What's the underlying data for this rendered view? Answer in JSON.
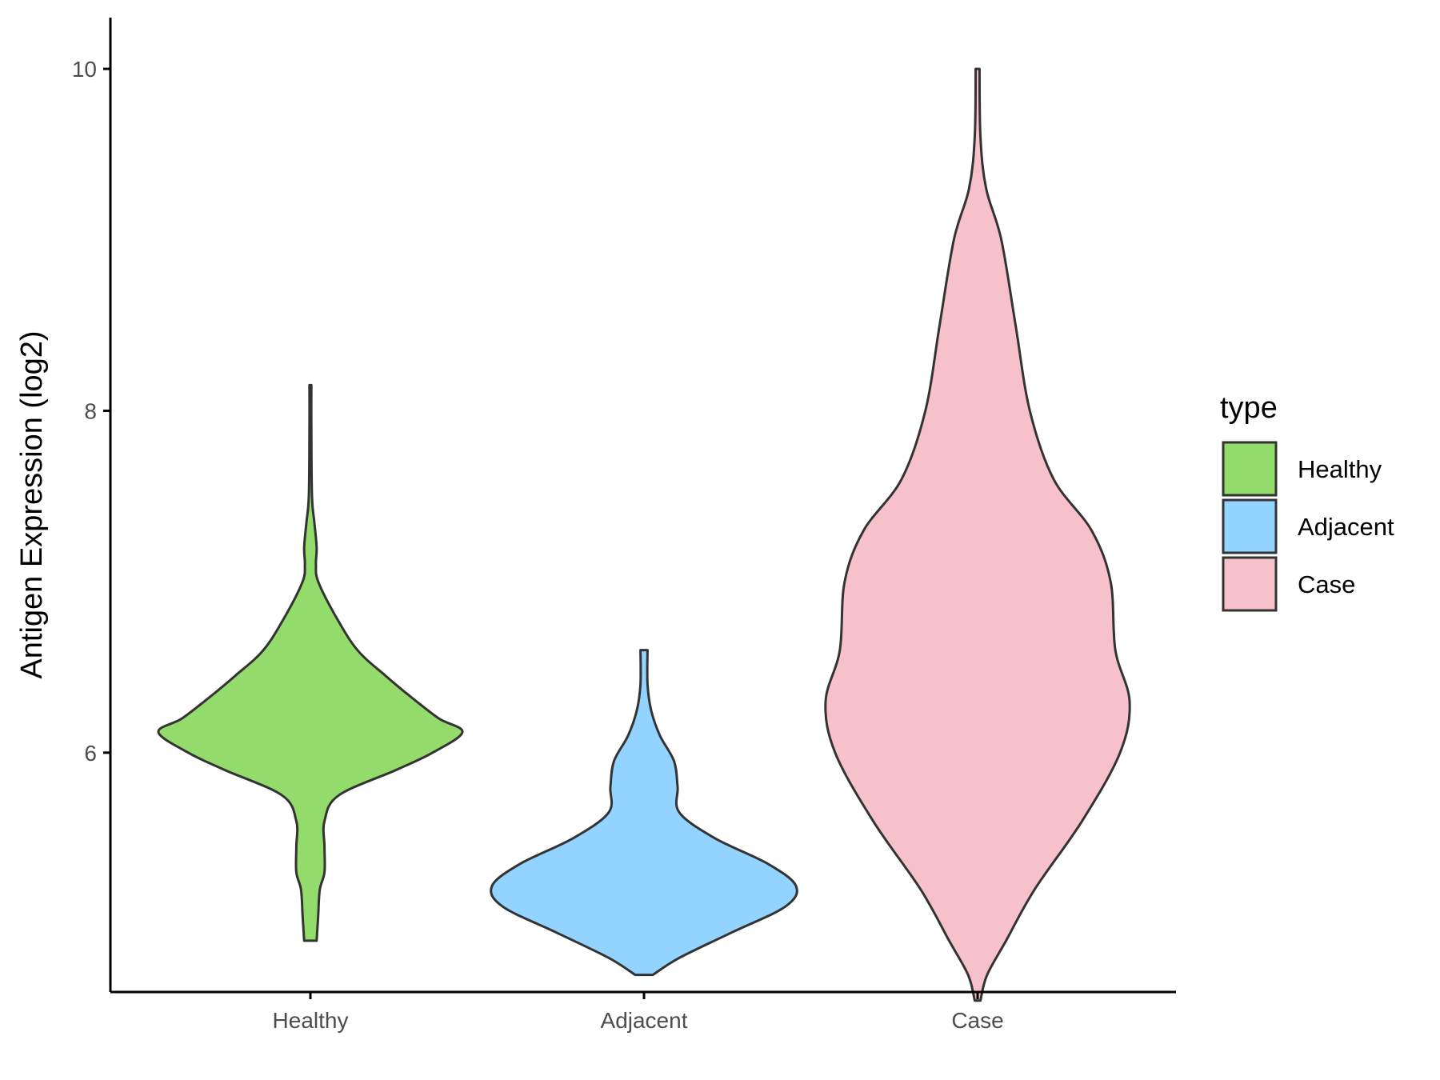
{
  "chart_data": {
    "type": "violin",
    "ylabel": "Antigen Expression (log2)",
    "xlabel": "",
    "categories": [
      "Healthy",
      "Adjacent",
      "Case"
    ],
    "ylim": [
      4.6,
      10.3
    ],
    "yticks": [
      6,
      8,
      10
    ],
    "legend": {
      "title": "type",
      "position": "right",
      "entries": [
        {
          "label": "Healthy",
          "color": "#93DB6B"
        },
        {
          "label": "Adjacent",
          "color": "#93D3FF"
        },
        {
          "label": "Case",
          "color": "#F7C1CC"
        }
      ]
    },
    "grid": false,
    "series": [
      {
        "category": "Healthy",
        "color": "#93DB6B",
        "min": 4.9,
        "max": 8.15,
        "density": [
          [
            4.9,
            0.04
          ],
          [
            5.05,
            0.05
          ],
          [
            5.2,
            0.06
          ],
          [
            5.3,
            0.09
          ],
          [
            5.45,
            0.09
          ],
          [
            5.6,
            0.09
          ],
          [
            5.75,
            0.18
          ],
          [
            5.9,
            0.55
          ],
          [
            6.0,
            0.78
          ],
          [
            6.12,
            0.97
          ],
          [
            6.2,
            0.82
          ],
          [
            6.32,
            0.65
          ],
          [
            6.45,
            0.48
          ],
          [
            6.6,
            0.3
          ],
          [
            6.8,
            0.16
          ],
          [
            7.0,
            0.05
          ],
          [
            7.1,
            0.035
          ],
          [
            7.2,
            0.04
          ],
          [
            7.35,
            0.025
          ],
          [
            7.5,
            0.01
          ],
          [
            7.9,
            0.006
          ],
          [
            8.15,
            0.006
          ]
        ]
      },
      {
        "category": "Adjacent",
        "color": "#93D3FF",
        "min": 4.7,
        "max": 6.6,
        "density": [
          [
            4.7,
            0.05
          ],
          [
            4.8,
            0.2
          ],
          [
            4.95,
            0.5
          ],
          [
            5.1,
            0.8
          ],
          [
            5.22,
            0.86
          ],
          [
            5.35,
            0.7
          ],
          [
            5.5,
            0.4
          ],
          [
            5.65,
            0.2
          ],
          [
            5.8,
            0.19
          ],
          [
            5.95,
            0.17
          ],
          [
            6.1,
            0.09
          ],
          [
            6.25,
            0.04
          ],
          [
            6.4,
            0.02
          ],
          [
            6.6,
            0.02
          ]
        ]
      },
      {
        "category": "Case",
        "color": "#F7C1CC",
        "min": 4.55,
        "max": 10.0,
        "density": [
          [
            4.55,
            0.003
          ],
          [
            4.7,
            0.01
          ],
          [
            4.9,
            0.03
          ],
          [
            5.2,
            0.06
          ],
          [
            5.6,
            0.11
          ],
          [
            6.0,
            0.15
          ],
          [
            6.3,
            0.16
          ],
          [
            6.6,
            0.145
          ],
          [
            7.0,
            0.14
          ],
          [
            7.3,
            0.12
          ],
          [
            7.6,
            0.08
          ],
          [
            8.0,
            0.055
          ],
          [
            8.5,
            0.04
          ],
          [
            9.0,
            0.025
          ],
          [
            9.3,
            0.009
          ],
          [
            9.6,
            0.003
          ],
          [
            10.0,
            0.002
          ]
        ]
      }
    ]
  }
}
